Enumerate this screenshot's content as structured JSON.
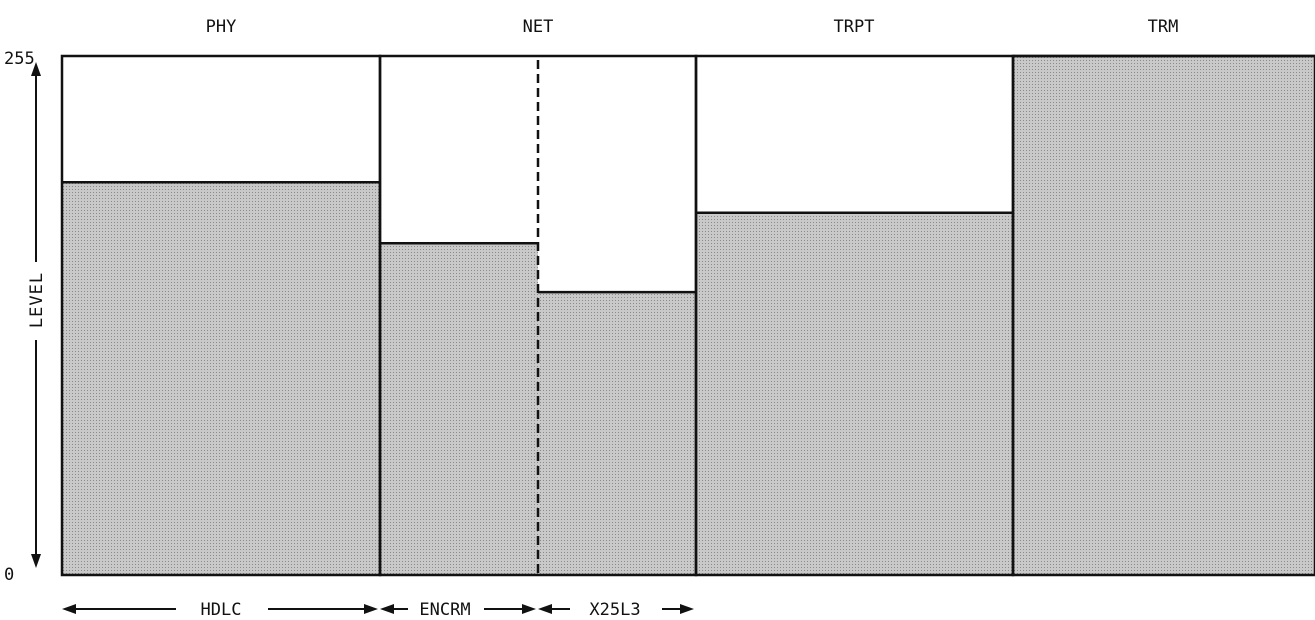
{
  "chart_data": {
    "type": "bar",
    "title": "",
    "ylabel": "LEVEL",
    "ylim": [
      0,
      255
    ],
    "yticks": [
      "0",
      "255"
    ],
    "columns": [
      "PHY",
      "NET",
      "TRPT",
      "TRM"
    ],
    "bars": [
      {
        "name": "HDLC",
        "column": "PHY",
        "value": 193
      },
      {
        "name": "ENCRM",
        "column": "NET",
        "value": 163
      },
      {
        "name": "X25L3",
        "column": "NET",
        "value": 139
      },
      {
        "name": "TRPT",
        "column": "TRPT",
        "value": 178
      },
      {
        "name": "TRM",
        "column": "TRM",
        "value": 255
      }
    ],
    "spans": [
      "HDLC",
      "ENCRM",
      "X25L3"
    ]
  },
  "style": {
    "fill_color": "#b9b9b9",
    "line_color": "#111111"
  }
}
